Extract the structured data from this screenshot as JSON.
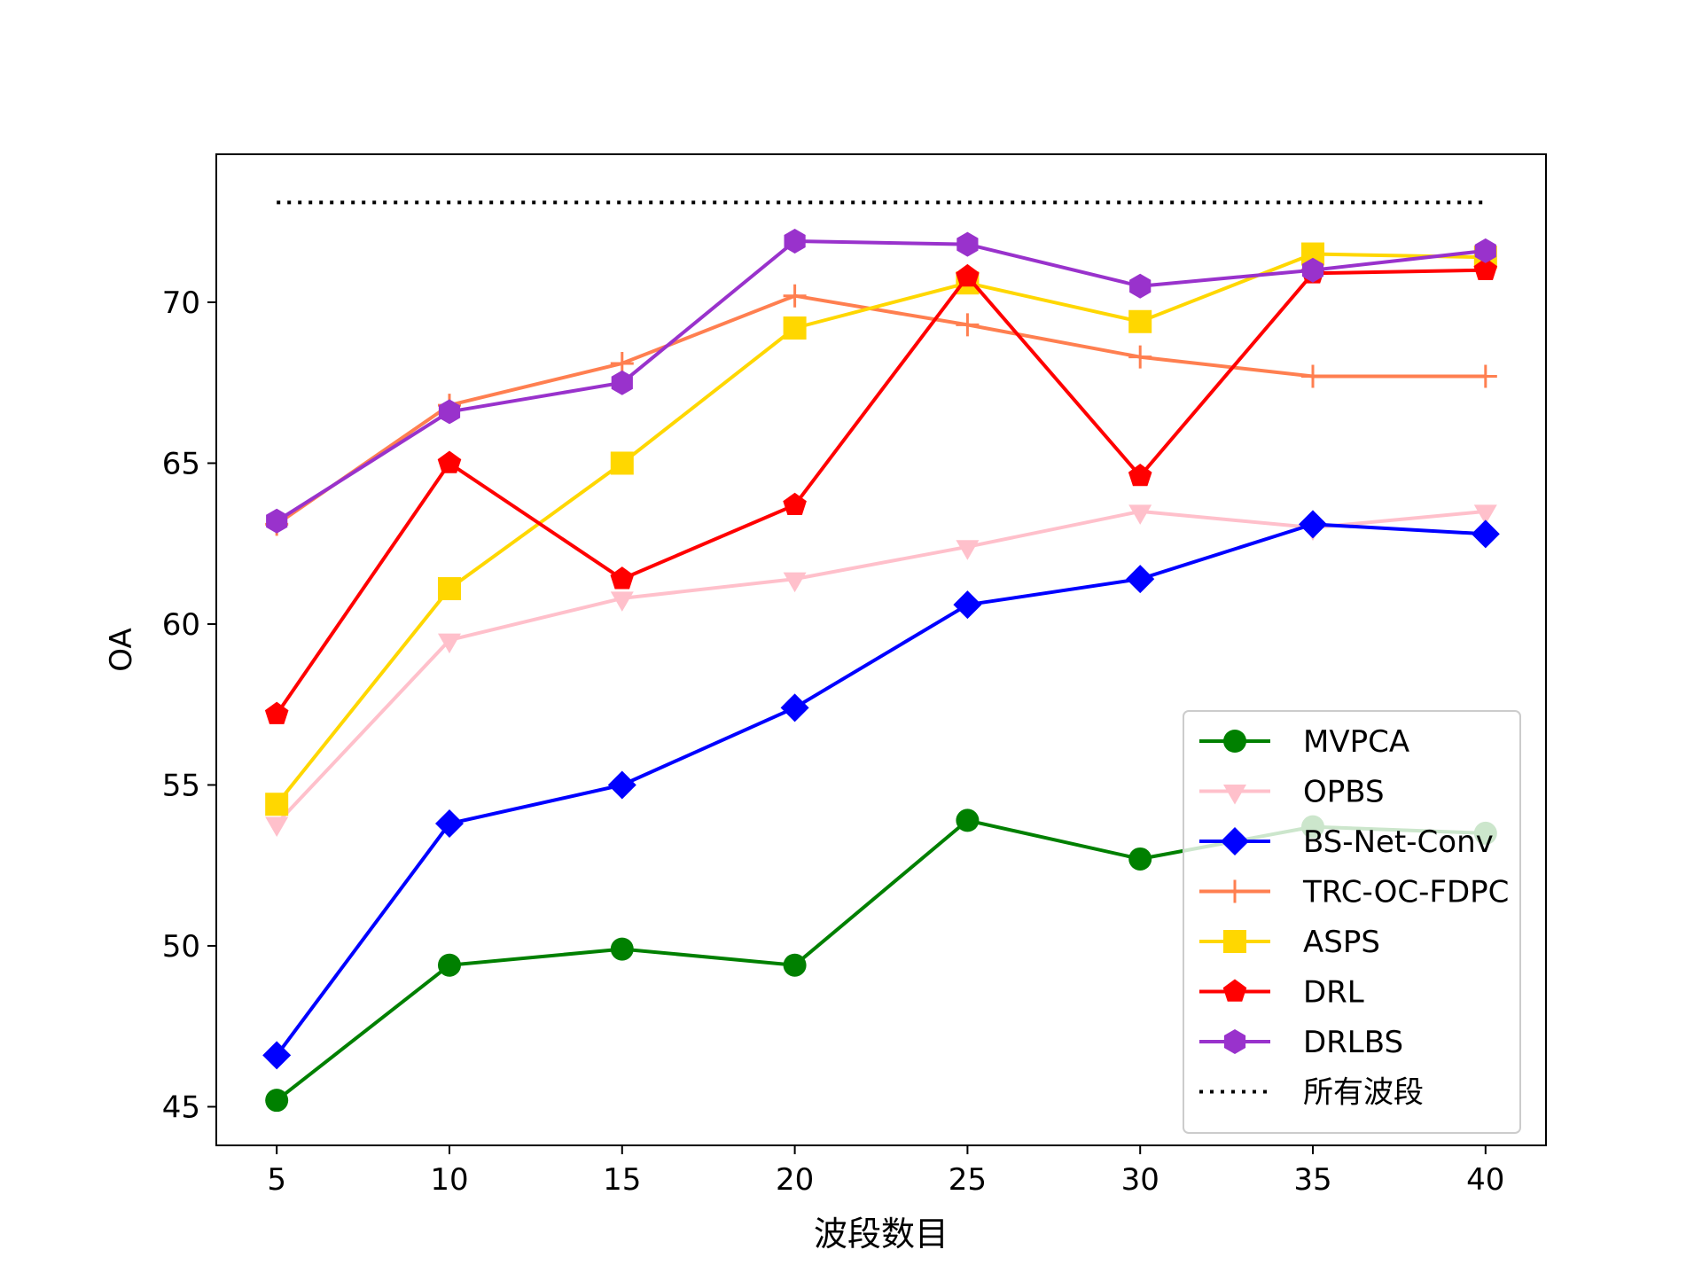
{
  "chart_data": {
    "type": "line",
    "title": "",
    "xlabel": "波段数目",
    "ylabel": "OA",
    "x": [
      5,
      10,
      15,
      20,
      25,
      30,
      35,
      40
    ],
    "xticks": [
      5,
      10,
      15,
      20,
      25,
      30,
      35,
      40
    ],
    "xlim": [
      3.25,
      41.75
    ],
    "yticks": [
      45,
      50,
      55,
      60,
      65,
      70
    ],
    "ylim": [
      43.8,
      74.6
    ],
    "grid": false,
    "legend_position": "lower right",
    "series": [
      {
        "name": "MVPCA",
        "color": "#008000",
        "marker": "circle",
        "values": [
          45.2,
          49.4,
          49.9,
          49.4,
          53.9,
          52.7,
          53.7,
          53.5
        ]
      },
      {
        "name": "OPBS",
        "color": "#ffc0cb",
        "marker": "triangle-down",
        "values": [
          53.8,
          59.5,
          60.8,
          61.4,
          62.4,
          63.5,
          63.0,
          63.5
        ]
      },
      {
        "name": "BS-Net-Conv",
        "color": "#0000ff",
        "marker": "diamond",
        "values": [
          46.6,
          53.8,
          55.0,
          57.4,
          60.6,
          61.4,
          63.1,
          62.8
        ]
      },
      {
        "name": "TRC-OC-FDPC",
        "color": "#ff7f50",
        "marker": "plus",
        "values": [
          63.1,
          66.8,
          68.1,
          70.2,
          69.3,
          68.3,
          67.7,
          67.7
        ]
      },
      {
        "name": "ASPS",
        "color": "#ffd700",
        "marker": "square",
        "values": [
          54.4,
          61.1,
          65.0,
          69.2,
          70.6,
          69.4,
          71.5,
          71.4
        ]
      },
      {
        "name": "DRL",
        "color": "#ff0000",
        "marker": "pentagon",
        "values": [
          57.2,
          65.0,
          61.4,
          63.7,
          70.8,
          64.6,
          70.9,
          71.0
        ]
      },
      {
        "name": "DRLBS",
        "color": "#9932cc",
        "marker": "hexagon",
        "values": [
          63.2,
          66.6,
          67.5,
          71.9,
          71.8,
          70.5,
          71.0,
          71.6
        ]
      },
      {
        "name": "所有波段",
        "color": "#000000",
        "marker": "none",
        "linestyle": "dotted",
        "values": [
          73.1,
          73.1,
          73.1,
          73.1,
          73.1,
          73.1,
          73.1,
          73.1
        ]
      }
    ]
  }
}
